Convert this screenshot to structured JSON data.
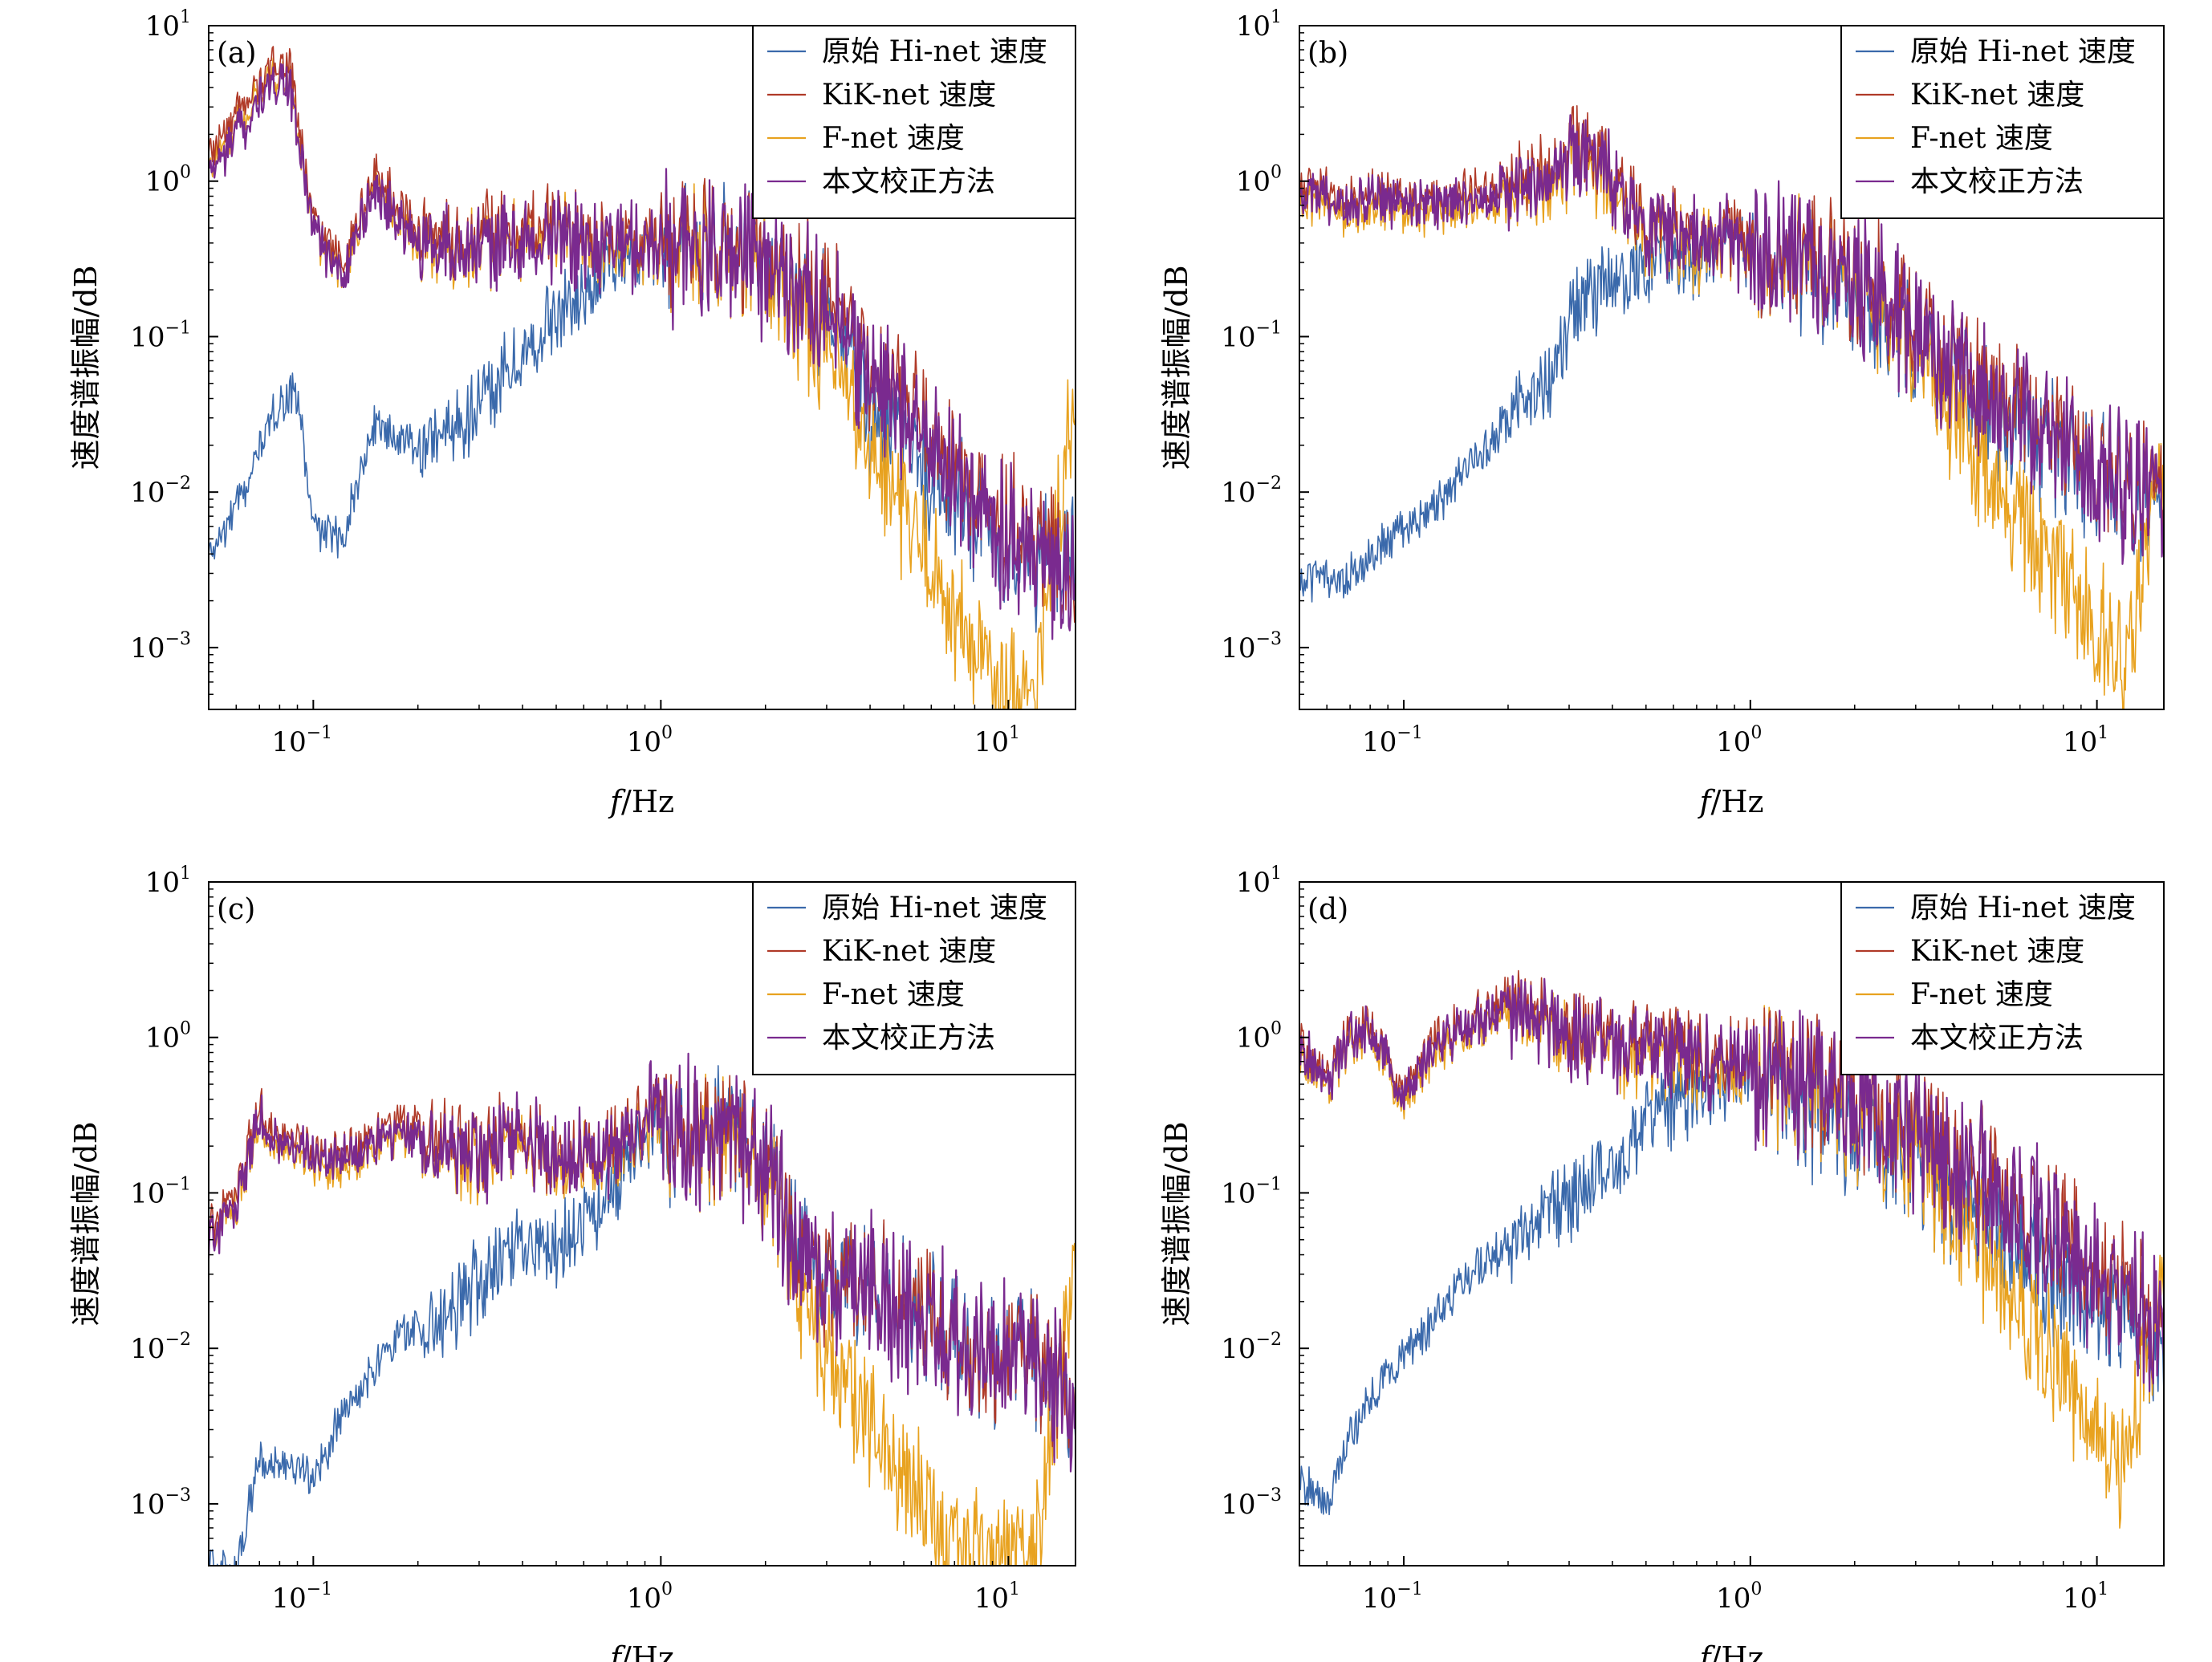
{
  "colors": {
    "hinet": "#3a69ab",
    "kiknet": "#b03a28",
    "fnet": "#e8a21f",
    "corrected": "#7a2a8f"
  },
  "chart_data": [
    {
      "type": "line",
      "panel_label": "(a)",
      "xscale": "log",
      "yscale": "log",
      "xlim": [
        0.05,
        15.6
      ],
      "ylim": [
        0.0004,
        10
      ],
      "xlabel_italic": "f",
      "xlabel_rest": "/Hz",
      "ylabel": "速度谱振幅/dB",
      "xticks": [
        {
          "base": "10",
          "exp": "−1"
        },
        {
          "base": "10",
          "exp": "0"
        },
        {
          "base": "10",
          "exp": "1"
        }
      ],
      "xtick_values": [
        0.1,
        1,
        10
      ],
      "yticks": [
        {
          "base": "10",
          "exp": "1"
        },
        {
          "base": "10",
          "exp": "0"
        },
        {
          "base": "10",
          "exp": "−1"
        },
        {
          "base": "10",
          "exp": "−2"
        },
        {
          "base": "10",
          "exp": "−3"
        }
      ],
      "ytick_values": [
        10,
        1,
        0.1,
        0.01,
        0.001
      ],
      "legend_position": "top-right",
      "legend": [
        "原始 Hi-net 速度",
        "KiK-net 速度",
        "F-net 速度",
        "本文校正方法"
      ],
      "series": [
        {
          "name": "原始 Hi-net 速度",
          "key": "hinet",
          "x": [
            0.05,
            0.06,
            0.07,
            0.08,
            0.09,
            0.1,
            0.12,
            0.15,
            0.2,
            0.3,
            0.5,
            0.7,
            1,
            1.5,
            2,
            3,
            4,
            6,
            8,
            12,
            15.6
          ],
          "y": [
            0.004,
            0.008,
            0.02,
            0.04,
            0.045,
            0.006,
            0.005,
            0.03,
            0.02,
            0.04,
            0.15,
            0.3,
            0.45,
            0.45,
            0.35,
            0.15,
            0.04,
            0.015,
            0.008,
            0.004,
            0.005
          ]
        },
        {
          "name": "KiK-net 速度",
          "key": "kiknet",
          "x": [
            0.05,
            0.06,
            0.07,
            0.08,
            0.085,
            0.1,
            0.12,
            0.15,
            0.2,
            0.3,
            0.5,
            0.7,
            1,
            1.5,
            2,
            3,
            4,
            6,
            8,
            12,
            15.6
          ],
          "y": [
            1.5,
            2.8,
            4.5,
            6.5,
            6.0,
            0.6,
            0.3,
            1.2,
            0.5,
            0.5,
            0.6,
            0.45,
            0.5,
            0.45,
            0.4,
            0.2,
            0.07,
            0.03,
            0.012,
            0.006,
            0.003
          ]
        },
        {
          "name": "F-net 速度",
          "key": "fnet",
          "x": [
            0.05,
            0.06,
            0.07,
            0.08,
            0.085,
            0.1,
            0.12,
            0.15,
            0.2,
            0.3,
            0.5,
            0.7,
            1,
            1.5,
            2,
            3,
            4,
            6,
            8,
            12,
            15.6
          ],
          "y": [
            1.3,
            2.3,
            4.0,
            5.2,
            5.0,
            0.5,
            0.25,
            1.0,
            0.4,
            0.4,
            0.5,
            0.4,
            0.45,
            0.4,
            0.3,
            0.1,
            0.02,
            0.004,
            0.001,
            0.0006,
            0.05
          ]
        },
        {
          "name": "本文校正方法",
          "key": "corrected",
          "x": [
            0.05,
            0.06,
            0.07,
            0.08,
            0.085,
            0.1,
            0.12,
            0.15,
            0.2,
            0.3,
            0.5,
            0.7,
            1,
            1.5,
            2,
            3,
            4,
            6,
            8,
            12,
            15.6
          ],
          "y": [
            1.2,
            2.0,
            3.5,
            4.8,
            4.5,
            0.5,
            0.25,
            1.0,
            0.4,
            0.4,
            0.5,
            0.4,
            0.45,
            0.4,
            0.35,
            0.15,
            0.06,
            0.025,
            0.01,
            0.005,
            0.003
          ]
        }
      ]
    },
    {
      "type": "line",
      "panel_label": "(b)",
      "xscale": "log",
      "yscale": "log",
      "xlim": [
        0.05,
        15.6
      ],
      "ylim": [
        0.0004,
        10
      ],
      "xlabel_italic": "f",
      "xlabel_rest": "/Hz",
      "ylabel": "速度谱振幅/dB",
      "xticks": [
        {
          "base": "10",
          "exp": "−1"
        },
        {
          "base": "10",
          "exp": "0"
        },
        {
          "base": "10",
          "exp": "1"
        }
      ],
      "xtick_values": [
        0.1,
        1,
        10
      ],
      "yticks": [
        {
          "base": "10",
          "exp": "1"
        },
        {
          "base": "10",
          "exp": "0"
        },
        {
          "base": "10",
          "exp": "−1"
        },
        {
          "base": "10",
          "exp": "−2"
        },
        {
          "base": "10",
          "exp": "−3"
        }
      ],
      "ytick_values": [
        10,
        1,
        0.1,
        0.01,
        0.001
      ],
      "legend_position": "top-right",
      "legend": [
        "原始 Hi-net 速度",
        "KiK-net 速度",
        "F-net 速度",
        "本文校正方法"
      ],
      "series": [
        {
          "name": "原始 Hi-net 速度",
          "key": "hinet",
          "x": [
            0.05,
            0.06,
            0.07,
            0.08,
            0.1,
            0.12,
            0.15,
            0.2,
            0.25,
            0.33,
            0.5,
            0.7,
            1,
            1.5,
            2,
            3,
            4,
            6,
            8,
            12,
            15.6
          ],
          "y": [
            0.003,
            0.003,
            0.003,
            0.004,
            0.006,
            0.008,
            0.015,
            0.03,
            0.05,
            0.2,
            0.3,
            0.35,
            0.4,
            0.3,
            0.2,
            0.1,
            0.06,
            0.03,
            0.02,
            0.012,
            0.01
          ]
        },
        {
          "name": "KiK-net 速度",
          "key": "kiknet",
          "x": [
            0.05,
            0.06,
            0.07,
            0.08,
            0.1,
            0.12,
            0.15,
            0.2,
            0.25,
            0.33,
            0.5,
            0.7,
            1,
            1.5,
            2,
            3,
            4,
            6,
            8,
            12,
            15.6
          ],
          "y": [
            1.0,
            0.9,
            0.8,
            0.9,
            0.8,
            0.8,
            0.9,
            1.0,
            1.2,
            2.0,
            0.6,
            0.5,
            0.45,
            0.4,
            0.3,
            0.15,
            0.08,
            0.04,
            0.025,
            0.015,
            0.012
          ]
        },
        {
          "name": "F-net 速度",
          "key": "fnet",
          "x": [
            0.05,
            0.06,
            0.07,
            0.08,
            0.1,
            0.12,
            0.15,
            0.2,
            0.25,
            0.33,
            0.5,
            0.7,
            1,
            1.5,
            2,
            3,
            4,
            6,
            8,
            12,
            15.6
          ],
          "y": [
            0.8,
            0.7,
            0.65,
            0.7,
            0.65,
            0.65,
            0.7,
            0.8,
            1.0,
            1.6,
            0.5,
            0.4,
            0.4,
            0.35,
            0.25,
            0.1,
            0.03,
            0.008,
            0.003,
            0.001,
            0.02
          ]
        },
        {
          "name": "本文校正方法",
          "key": "corrected",
          "x": [
            0.05,
            0.06,
            0.07,
            0.08,
            0.1,
            0.12,
            0.15,
            0.2,
            0.25,
            0.33,
            0.5,
            0.7,
            1,
            1.5,
            2,
            3,
            4,
            6,
            8,
            12,
            15.6
          ],
          "y": [
            0.9,
            0.8,
            0.75,
            0.8,
            0.75,
            0.75,
            0.8,
            0.9,
            1.1,
            1.8,
            0.55,
            0.45,
            0.42,
            0.38,
            0.28,
            0.14,
            0.07,
            0.035,
            0.022,
            0.014,
            0.011
          ]
        }
      ]
    },
    {
      "type": "line",
      "panel_label": "(c)",
      "xscale": "log",
      "yscale": "log",
      "xlim": [
        0.05,
        15.6
      ],
      "ylim": [
        0.0004,
        10
      ],
      "xlabel_italic": "f",
      "xlabel_rest": "/Hz",
      "ylabel": "速度谱振幅/dB",
      "xticks": [
        {
          "base": "10",
          "exp": "−1"
        },
        {
          "base": "10",
          "exp": "0"
        },
        {
          "base": "10",
          "exp": "1"
        }
      ],
      "xtick_values": [
        0.1,
        1,
        10
      ],
      "yticks": [
        {
          "base": "10",
          "exp": "1"
        },
        {
          "base": "10",
          "exp": "0"
        },
        {
          "base": "10",
          "exp": "−1"
        },
        {
          "base": "10",
          "exp": "−2"
        },
        {
          "base": "10",
          "exp": "−3"
        }
      ],
      "ytick_values": [
        10,
        1,
        0.1,
        0.01,
        0.001
      ],
      "legend_position": "top-right",
      "legend": [
        "原始 Hi-net 速度",
        "KiK-net 速度",
        "F-net 速度",
        "本文校正方法"
      ],
      "series": [
        {
          "name": "原始 Hi-net 速度",
          "key": "hinet",
          "x": [
            0.06,
            0.07,
            0.08,
            0.1,
            0.12,
            0.15,
            0.2,
            0.25,
            0.3,
            0.35,
            0.5,
            0.7,
            0.9,
            1.2,
            1.5,
            2,
            2.5,
            3,
            4,
            6,
            8,
            12,
            15.6
          ],
          "y": [
            0.0004,
            0.002,
            0.002,
            0.0015,
            0.004,
            0.008,
            0.015,
            0.02,
            0.03,
            0.05,
            0.05,
            0.1,
            0.3,
            0.25,
            0.3,
            0.2,
            0.05,
            0.03,
            0.03,
            0.02,
            0.01,
            0.01,
            0.005
          ]
        },
        {
          "name": "KiK-net 速度",
          "key": "kiknet",
          "x": [
            0.05,
            0.06,
            0.07,
            0.08,
            0.1,
            0.12,
            0.15,
            0.2,
            0.25,
            0.3,
            0.35,
            0.5,
            0.7,
            0.9,
            1.2,
            1.5,
            2,
            2.5,
            3,
            4,
            6,
            8,
            12,
            15.6
          ],
          "y": [
            0.06,
            0.12,
            0.35,
            0.25,
            0.2,
            0.2,
            0.25,
            0.3,
            0.25,
            0.2,
            0.3,
            0.2,
            0.2,
            0.4,
            0.3,
            0.3,
            0.2,
            0.05,
            0.03,
            0.03,
            0.02,
            0.01,
            0.01,
            0.005
          ]
        },
        {
          "name": "F-net 速度",
          "key": "fnet",
          "x": [
            0.05,
            0.06,
            0.07,
            0.08,
            0.1,
            0.12,
            0.15,
            0.2,
            0.25,
            0.3,
            0.35,
            0.5,
            0.7,
            0.9,
            1.2,
            1.5,
            2,
            2.5,
            3,
            4,
            6,
            8,
            12,
            15.6
          ],
          "y": [
            0.05,
            0.09,
            0.28,
            0.2,
            0.16,
            0.15,
            0.2,
            0.24,
            0.2,
            0.16,
            0.25,
            0.18,
            0.18,
            0.35,
            0.25,
            0.25,
            0.15,
            0.03,
            0.01,
            0.004,
            0.001,
            0.0006,
            0.0005,
            0.05
          ]
        },
        {
          "name": "本文校正方法",
          "key": "corrected",
          "x": [
            0.05,
            0.06,
            0.07,
            0.08,
            0.1,
            0.12,
            0.15,
            0.2,
            0.25,
            0.3,
            0.35,
            0.5,
            0.7,
            0.9,
            1.2,
            1.5,
            2,
            2.5,
            3,
            4,
            6,
            8,
            12,
            15.6
          ],
          "y": [
            0.05,
            0.1,
            0.3,
            0.22,
            0.18,
            0.18,
            0.22,
            0.26,
            0.22,
            0.18,
            0.27,
            0.19,
            0.19,
            0.38,
            0.27,
            0.27,
            0.18,
            0.045,
            0.028,
            0.028,
            0.018,
            0.01,
            0.01,
            0.005
          ]
        }
      ]
    },
    {
      "type": "line",
      "panel_label": "(d)",
      "xscale": "log",
      "yscale": "log",
      "xlim": [
        0.05,
        15.6
      ],
      "ylim": [
        0.0004,
        10
      ],
      "xlabel_italic": "f",
      "xlabel_rest": "/Hz",
      "ylabel": "速度谱振幅/dB",
      "xticks": [
        {
          "base": "10",
          "exp": "−1"
        },
        {
          "base": "10",
          "exp": "0"
        },
        {
          "base": "10",
          "exp": "1"
        }
      ],
      "xtick_values": [
        0.1,
        1,
        10
      ],
      "yticks": [
        {
          "base": "10",
          "exp": "1"
        },
        {
          "base": "10",
          "exp": "0"
        },
        {
          "base": "10",
          "exp": "−1"
        },
        {
          "base": "10",
          "exp": "−2"
        },
        {
          "base": "10",
          "exp": "−3"
        }
      ],
      "ytick_values": [
        10,
        1,
        0.1,
        0.01,
        0.001
      ],
      "legend_position": "top-right",
      "legend": [
        "原始 Hi-net 速度",
        "KiK-net 速度",
        "F-net 速度",
        "本文校正方法"
      ],
      "series": [
        {
          "name": "原始 Hi-net 速度",
          "key": "hinet",
          "x": [
            0.05,
            0.06,
            0.07,
            0.08,
            0.1,
            0.12,
            0.15,
            0.2,
            0.3,
            0.4,
            0.5,
            0.7,
            1,
            1.5,
            2,
            3,
            4,
            6,
            8,
            12,
            15.6
          ],
          "y": [
            0.0015,
            0.001,
            0.003,
            0.005,
            0.01,
            0.015,
            0.03,
            0.05,
            0.1,
            0.15,
            0.3,
            0.5,
            0.7,
            0.4,
            0.3,
            0.2,
            0.1,
            0.06,
            0.03,
            0.02,
            0.01
          ]
        },
        {
          "name": "KiK-net 速度",
          "key": "kiknet",
          "x": [
            0.05,
            0.06,
            0.07,
            0.08,
            0.1,
            0.12,
            0.15,
            0.2,
            0.3,
            0.4,
            0.5,
            0.7,
            1,
            1.5,
            2,
            3,
            4,
            6,
            8,
            12,
            15.6
          ],
          "y": [
            1.0,
            0.6,
            1.2,
            1.3,
            0.5,
            1.0,
            1.3,
            2.0,
            1.2,
            1.1,
            1.0,
            0.9,
            0.8,
            0.6,
            0.5,
            0.3,
            0.2,
            0.1,
            0.06,
            0.03,
            0.015
          ]
        },
        {
          "name": "F-net 速度",
          "key": "fnet",
          "x": [
            0.05,
            0.06,
            0.07,
            0.08,
            0.1,
            0.12,
            0.15,
            0.2,
            0.3,
            0.4,
            0.5,
            0.7,
            1,
            1.5,
            2,
            3,
            4,
            6,
            8,
            12,
            15.6
          ],
          "y": [
            0.8,
            0.5,
            1.0,
            1.1,
            0.4,
            0.8,
            1.1,
            1.6,
            1.0,
            0.9,
            0.8,
            0.7,
            0.7,
            0.5,
            0.4,
            0.2,
            0.08,
            0.02,
            0.008,
            0.002,
            0.04
          ]
        },
        {
          "name": "本文校正方法",
          "key": "corrected",
          "x": [
            0.05,
            0.06,
            0.07,
            0.08,
            0.1,
            0.12,
            0.15,
            0.2,
            0.3,
            0.4,
            0.5,
            0.7,
            1,
            1.5,
            2,
            3,
            4,
            6,
            8,
            12,
            15.6
          ],
          "y": [
            0.9,
            0.55,
            1.1,
            1.2,
            0.45,
            0.9,
            1.2,
            1.8,
            1.1,
            1.0,
            0.9,
            0.8,
            0.75,
            0.55,
            0.45,
            0.28,
            0.18,
            0.09,
            0.055,
            0.028,
            0.014
          ]
        }
      ]
    }
  ]
}
